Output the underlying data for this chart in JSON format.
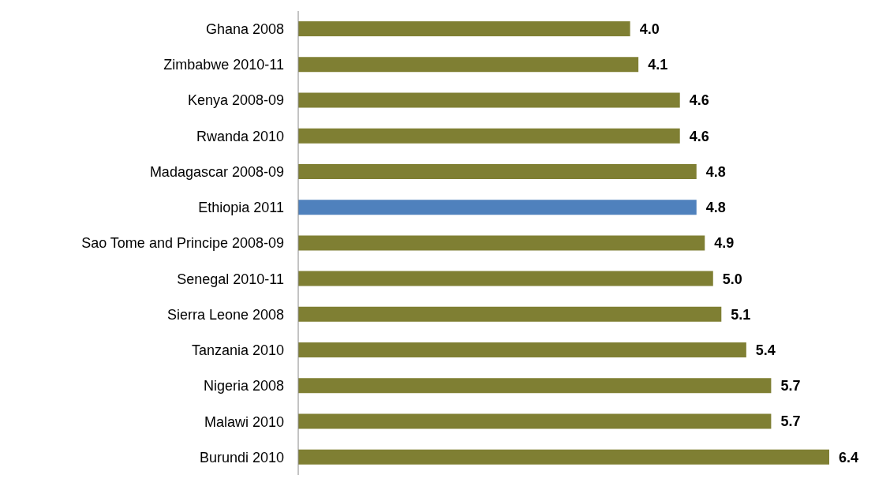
{
  "chart_data": {
    "type": "bar",
    "orientation": "horizontal",
    "categories": [
      "Ghana 2008",
      "Zimbabwe 2010-11",
      "Kenya 2008-09",
      "Rwanda 2010",
      "Madagascar 2008-09",
      "Ethiopia 2011",
      "Sao Tome and Principe 2008-09",
      "Senegal 2010-11",
      "Sierra Leone 2008",
      "Tanzania 2010",
      "Nigeria 2008",
      "Malawi 2010",
      "Burundi 2010"
    ],
    "values": [
      4.0,
      4.1,
      4.6,
      4.6,
      4.8,
      4.8,
      4.9,
      5.0,
      5.1,
      5.4,
      5.7,
      5.7,
      6.4
    ],
    "colors": [
      "#7f7f33",
      "#7f7f33",
      "#7f7f33",
      "#7f7f33",
      "#7f7f33",
      "#4f81bd",
      "#7f7f33",
      "#7f7f33",
      "#7f7f33",
      "#7f7f33",
      "#7f7f33",
      "#7f7f33",
      "#7f7f33"
    ],
    "value_labels": [
      "4.0",
      "4.1",
      "4.6",
      "4.6",
      "4.8",
      "4.8",
      "4.9",
      "5.0",
      "5.1",
      "5.4",
      "5.7",
      "5.7",
      "6.4"
    ],
    "grid": false,
    "legend": false
  }
}
